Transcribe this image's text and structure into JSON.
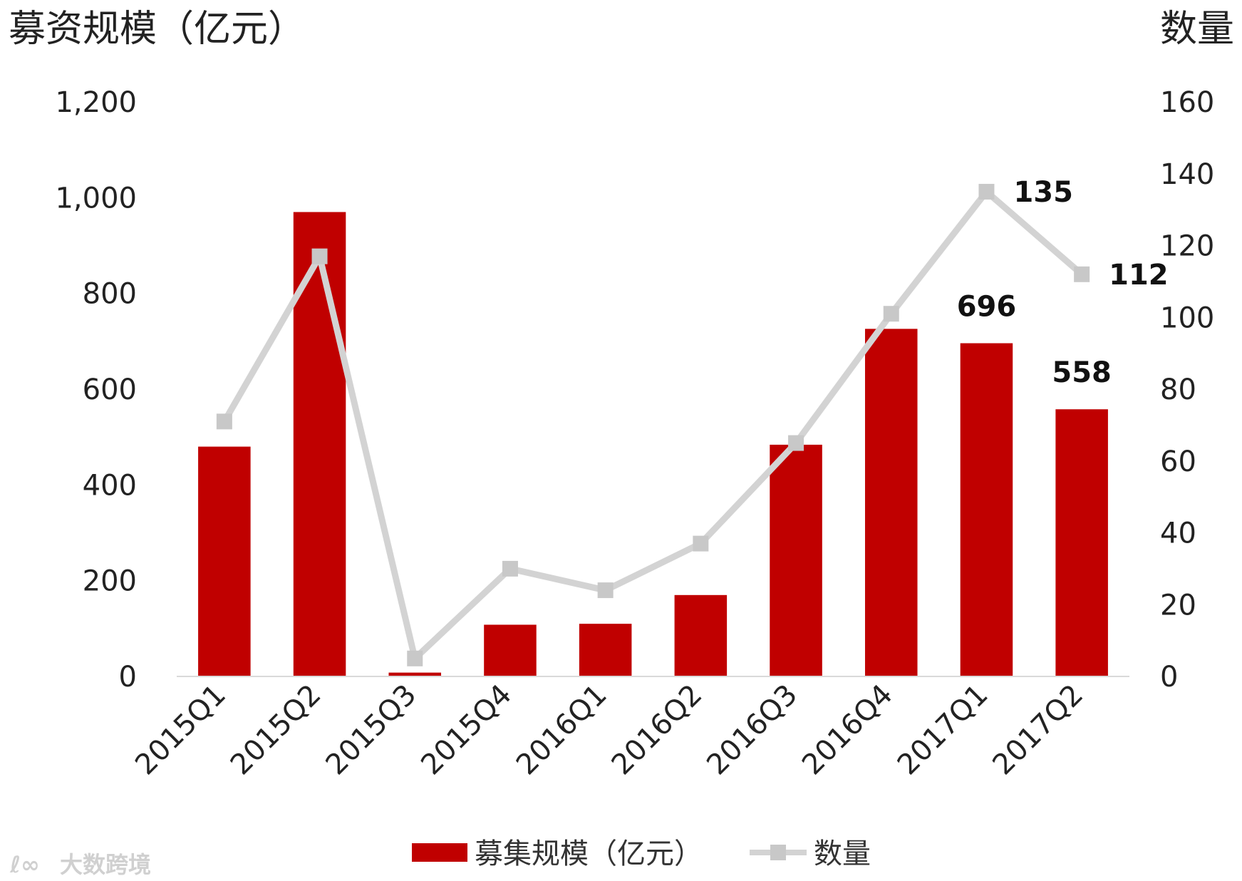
{
  "chart_data": {
    "type": "bar",
    "categories": [
      "2015Q1",
      "2015Q2",
      "2015Q3",
      "2015Q4",
      "2016Q1",
      "2016Q2",
      "2016Q3",
      "2016Q4",
      "2017Q1",
      "2017Q2"
    ],
    "series": [
      {
        "name": "募集规模（亿元）",
        "type": "bar",
        "axis": "left",
        "color": "#c00000",
        "values": [
          480,
          970,
          8,
          108,
          110,
          170,
          484,
          726,
          696,
          558
        ],
        "data_labels": {
          "8": "696",
          "9": "558"
        }
      },
      {
        "name": "数量",
        "type": "line",
        "axis": "right",
        "color": "#d3d3d3",
        "values": [
          71,
          117,
          5,
          30,
          24,
          37,
          65,
          101,
          135,
          112
        ],
        "data_labels": {
          "8": "135",
          "9": "112"
        }
      }
    ],
    "left_axis": {
      "title": "募资规模（亿元）",
      "ylim": [
        0,
        1200
      ],
      "ticks": [
        0,
        200,
        400,
        600,
        800,
        1000,
        1200
      ],
      "tick_labels": [
        "0",
        "200",
        "400",
        "600",
        "800",
        "1,000",
        "1,200"
      ]
    },
    "right_axis": {
      "title": "数量",
      "ylim": [
        0,
        160
      ],
      "ticks": [
        0,
        20,
        40,
        60,
        80,
        100,
        120,
        140,
        160
      ],
      "tick_labels": [
        "0",
        "20",
        "40",
        "60",
        "80",
        "100",
        "120",
        "140",
        "160"
      ]
    },
    "legend": {
      "position": "bottom",
      "items": [
        "募集规模（亿元）",
        "数量"
      ]
    },
    "grid": false
  },
  "watermark": "大数跨境"
}
